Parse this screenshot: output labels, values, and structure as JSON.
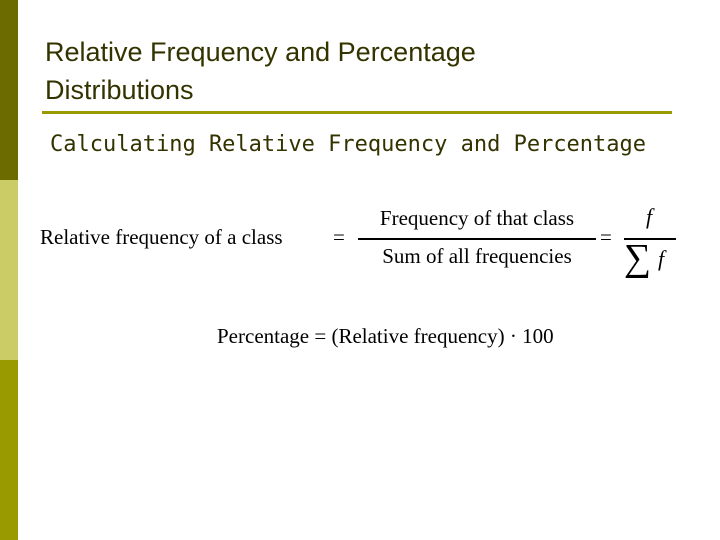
{
  "slide": {
    "title_line1": "Relative Frequency and Percentage",
    "title_line2": "Distributions",
    "subtitle": "Calculating Relative Frequency and Percentage"
  },
  "formula1": {
    "lhs": "Relative frequency of a class",
    "equals": "=",
    "numerator": "Frequency of that class",
    "denominator": "Sum of all frequencies",
    "equals2": "=",
    "numerator2": "f",
    "sigma": "∑",
    "denominator2": "f"
  },
  "formula2": {
    "text": "Percentage = (Relative frequency) · 100"
  },
  "colors": {
    "bar_top": "#6b6b00",
    "bar_mid": "#cccc66",
    "bar_bottom": "#999900",
    "rule": "#999900",
    "title_text": "#333300"
  }
}
